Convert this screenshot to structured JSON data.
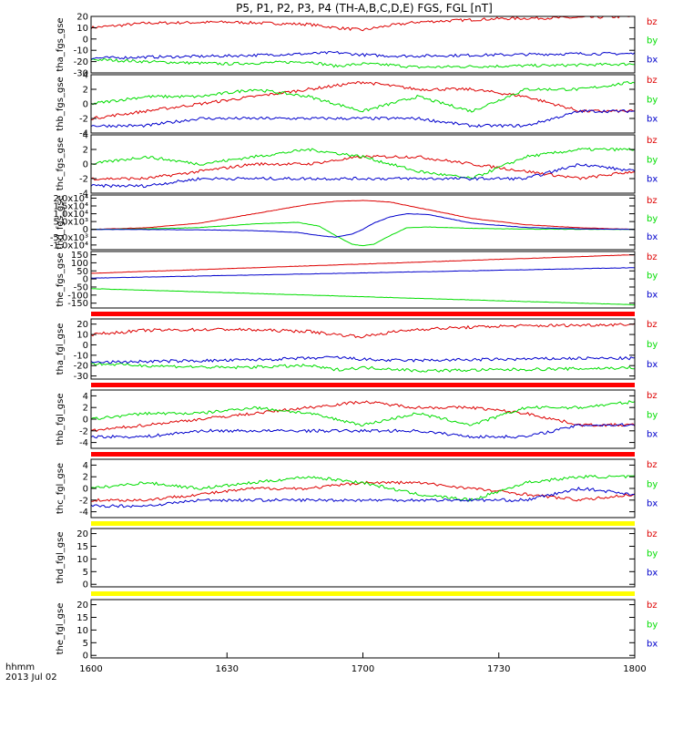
{
  "title": "P5, P1, P2, P3, P4 (TH-A,B,C,D,E) FGS, FGL [nT]",
  "xaxis": {
    "ticks": [
      "1600",
      "1630",
      "1700",
      "1730",
      "1800"
    ],
    "unit_label": "hhmm",
    "date_label": "2013 Jul 02"
  },
  "colors": {
    "bx": "#0000cc",
    "by": "#00dd00",
    "bz": "#dd0000",
    "red_bar": "#ff0000",
    "yellow_bar": "#ffff00",
    "frame": "#000000"
  },
  "chart_data": [
    {
      "type": "line",
      "name": "tha_fgs_gse",
      "ylabel": "tha_fgs_gse",
      "ylim": [
        -30,
        20
      ],
      "yticks": [
        "20",
        "10",
        "0",
        "-10",
        "-20",
        "-30"
      ],
      "ytick_values": [
        20,
        10,
        0,
        -10,
        -20,
        -30
      ],
      "legend": [
        "bz",
        "by",
        "bx"
      ],
      "series": [
        {
          "name": "bz",
          "x": [
            0,
            10,
            25,
            40,
            45,
            50,
            55,
            60,
            75,
            90,
            100
          ],
          "y": [
            10,
            14,
            15,
            13,
            10,
            8,
            12,
            15,
            18,
            19,
            20
          ]
        },
        {
          "name": "by",
          "x": [
            0,
            10,
            25,
            40,
            45,
            50,
            55,
            60,
            75,
            90,
            100
          ],
          "y": [
            -18,
            -20,
            -22,
            -20,
            -24,
            -22,
            -23,
            -25,
            -24,
            -23,
            -22
          ]
        },
        {
          "name": "bx",
          "x": [
            0,
            10,
            25,
            40,
            45,
            50,
            55,
            60,
            75,
            90,
            100
          ],
          "y": [
            -17,
            -16,
            -15,
            -13,
            -12,
            -14,
            -15,
            -15,
            -14,
            -13,
            -13
          ]
        }
      ]
    },
    {
      "type": "line",
      "name": "thb_fgs_gse",
      "ylabel": "thb_fgs_gse",
      "ylim": [
        -4,
        4
      ],
      "yticks": [
        "4",
        "2",
        "0",
        "-2",
        "-4"
      ],
      "ytick_values": [
        4,
        2,
        0,
        -2,
        -4
      ],
      "legend": [
        "bz",
        "by",
        "bx"
      ],
      "series": [
        {
          "name": "bz",
          "x": [
            0,
            10,
            20,
            30,
            40,
            50,
            60,
            70,
            80,
            90,
            100
          ],
          "y": [
            -2,
            -1,
            0,
            1,
            2,
            3,
            2,
            2,
            1,
            -1,
            -1
          ]
        },
        {
          "name": "by",
          "x": [
            0,
            10,
            20,
            30,
            40,
            50,
            60,
            70,
            80,
            90,
            100
          ],
          "y": [
            0,
            1,
            1,
            2,
            1,
            -1,
            1,
            -1,
            2,
            2,
            3
          ]
        },
        {
          "name": "bx",
          "x": [
            0,
            10,
            20,
            30,
            40,
            50,
            60,
            70,
            80,
            90,
            100
          ],
          "y": [
            -3,
            -3,
            -2,
            -2,
            -2,
            -2,
            -2,
            -3,
            -3,
            -1,
            -1
          ]
        }
      ]
    },
    {
      "type": "line",
      "name": "thc_fgs_gse",
      "ylabel": "thc_fgs_gse",
      "ylim": [
        -4,
        4
      ],
      "yticks": [
        "4",
        "2",
        "0",
        "-2",
        "-4"
      ],
      "ytick_values": [
        4,
        2,
        0,
        -2,
        -4
      ],
      "legend": [
        "bz",
        "by",
        "bx"
      ],
      "series": [
        {
          "name": "bz",
          "x": [
            0,
            10,
            20,
            30,
            40,
            50,
            60,
            70,
            80,
            90,
            100
          ],
          "y": [
            -2,
            -2,
            -1,
            0,
            0,
            1,
            1,
            0,
            -1,
            -2,
            -1
          ]
        },
        {
          "name": "by",
          "x": [
            0,
            10,
            20,
            30,
            40,
            50,
            60,
            70,
            80,
            90,
            100
          ],
          "y": [
            0,
            1,
            0,
            1,
            2,
            1,
            -1,
            -2,
            1,
            2,
            2
          ]
        },
        {
          "name": "bx",
          "x": [
            0,
            10,
            20,
            30,
            40,
            50,
            60,
            70,
            80,
            90,
            100
          ],
          "y": [
            -3,
            -3,
            -2,
            -2,
            -2,
            -2,
            -2,
            -2,
            -2,
            0,
            -1
          ]
        }
      ]
    },
    {
      "type": "line",
      "name": "thd_fgs_gse",
      "ylabel": "thd_fgs_gse",
      "ylim": [
        -13000,
        22000
      ],
      "yticks": [
        "2.0x10⁴",
        "1.5x10⁴",
        "1.0x10⁴",
        "5.0x10³",
        "0",
        "-5.0x10³",
        "-1.0x10⁴"
      ],
      "ytick_values": [
        20000,
        15000,
        10000,
        5000,
        0,
        -5000,
        -10000
      ],
      "legend": [
        "bz",
        "by",
        "bx"
      ],
      "series": [
        {
          "name": "bz",
          "x": [
            0,
            10,
            20,
            30,
            40,
            45,
            50,
            55,
            60,
            70,
            80,
            90,
            100
          ],
          "y": [
            0,
            1000,
            4000,
            10000,
            16000,
            18000,
            18500,
            17500,
            14000,
            7000,
            3000,
            1000,
            0
          ]
        },
        {
          "name": "by",
          "x": [
            0,
            10,
            20,
            30,
            38,
            42,
            45,
            48,
            50,
            52,
            55,
            58,
            62,
            70,
            80,
            90,
            100
          ],
          "y": [
            0,
            300,
            1200,
            3500,
            4500,
            2000,
            -4000,
            -9500,
            -10500,
            -9500,
            -4000,
            1000,
            1500,
            700,
            200,
            50,
            0
          ]
        },
        {
          "name": "bx",
          "x": [
            0,
            10,
            20,
            30,
            38,
            42,
            45,
            48,
            50,
            52,
            55,
            58,
            62,
            70,
            80,
            90,
            100
          ],
          "y": [
            0,
            -100,
            -300,
            -800,
            -2000,
            -4000,
            -5000,
            -3000,
            0,
            4000,
            8000,
            10000,
            9500,
            4000,
            1200,
            300,
            0
          ]
        }
      ]
    },
    {
      "type": "line",
      "name": "the_fgs_gse",
      "ylabel": "the_fgs_gse",
      "ylim": [
        -180,
        170
      ],
      "yticks": [
        "150",
        "100",
        "50",
        "0",
        "-50",
        "-100",
        "-150"
      ],
      "ytick_values": [
        150,
        100,
        50,
        0,
        -50,
        -100,
        -150
      ],
      "legend": [
        "bz",
        "by",
        "bx"
      ],
      "series": [
        {
          "name": "bz",
          "x": [
            0,
            100
          ],
          "y": [
            35,
            150
          ]
        },
        {
          "name": "by",
          "x": [
            0,
            100
          ],
          "y": [
            -60,
            -160
          ]
        },
        {
          "name": "bx",
          "x": [
            0,
            100
          ],
          "y": [
            5,
            70
          ]
        }
      ]
    },
    {
      "type": "line",
      "name": "tha_fgl_gse",
      "ylabel": "tha_fgl_gse",
      "ylim": [
        -33,
        25
      ],
      "yticks": [
        "20",
        "10",
        "0",
        "-10",
        "-20",
        "-30"
      ],
      "ytick_values": [
        20,
        10,
        0,
        -10,
        -20,
        -30
      ],
      "legend": [
        "bz",
        "by",
        "bx"
      ],
      "series": [
        {
          "name": "bz",
          "x": [
            0,
            10,
            25,
            40,
            45,
            50,
            55,
            60,
            75,
            90,
            100
          ],
          "y": [
            10,
            14,
            15,
            13,
            10,
            8,
            12,
            15,
            18,
            19,
            20
          ]
        },
        {
          "name": "by",
          "x": [
            0,
            10,
            25,
            40,
            45,
            50,
            55,
            60,
            75,
            90,
            100
          ],
          "y": [
            -18,
            -20,
            -22,
            -20,
            -24,
            -22,
            -23,
            -25,
            -24,
            -23,
            -22
          ]
        },
        {
          "name": "bx",
          "x": [
            0,
            10,
            25,
            40,
            45,
            50,
            55,
            60,
            75,
            90,
            100
          ],
          "y": [
            -17,
            -16,
            -15,
            -13,
            -12,
            -14,
            -15,
            -15,
            -14,
            -13,
            -13
          ]
        }
      ]
    },
    {
      "type": "line",
      "name": "thb_fgl_gse",
      "ylabel": "thb_fgl_gse",
      "ylim": [
        -5,
        5
      ],
      "yticks": [
        "4",
        "2",
        "0",
        "-2",
        "-4"
      ],
      "ytick_values": [
        4,
        2,
        0,
        -2,
        -4
      ],
      "legend": [
        "bz",
        "by",
        "bx"
      ],
      "series": [
        {
          "name": "bz",
          "x": [
            0,
            10,
            20,
            30,
            40,
            50,
            60,
            70,
            80,
            90,
            100
          ],
          "y": [
            -2,
            -1,
            0,
            1,
            2,
            3,
            2,
            2,
            1,
            -1,
            -1
          ]
        },
        {
          "name": "by",
          "x": [
            0,
            10,
            20,
            30,
            40,
            50,
            60,
            70,
            80,
            90,
            100
          ],
          "y": [
            0,
            1,
            1,
            2,
            1,
            -1,
            1,
            -1,
            2,
            2,
            3
          ]
        },
        {
          "name": "bx",
          "x": [
            0,
            10,
            20,
            30,
            40,
            50,
            60,
            70,
            80,
            90,
            100
          ],
          "y": [
            -3,
            -3,
            -2,
            -2,
            -2,
            -2,
            -2,
            -3,
            -3,
            -1,
            -1
          ]
        }
      ]
    },
    {
      "type": "line",
      "name": "thc_fgl_gse",
      "ylabel": "thc_fgl_gse",
      "ylim": [
        -5,
        5
      ],
      "yticks": [
        "4",
        "2",
        "0",
        "-2",
        "-4"
      ],
      "ytick_values": [
        4,
        2,
        0,
        -2,
        -4
      ],
      "legend": [
        "bz",
        "by",
        "bx"
      ],
      "series": [
        {
          "name": "bz",
          "x": [
            0,
            10,
            20,
            30,
            40,
            50,
            60,
            70,
            80,
            90,
            100
          ],
          "y": [
            -2,
            -2,
            -1,
            0,
            0,
            1,
            1,
            0,
            -1,
            -2,
            -1
          ]
        },
        {
          "name": "by",
          "x": [
            0,
            10,
            20,
            30,
            40,
            50,
            60,
            70,
            80,
            90,
            100
          ],
          "y": [
            0,
            1,
            0,
            1,
            2,
            1,
            -1,
            -2,
            1,
            2,
            2
          ]
        },
        {
          "name": "bx",
          "x": [
            0,
            10,
            20,
            30,
            40,
            50,
            60,
            70,
            80,
            90,
            100
          ],
          "y": [
            -3,
            -3,
            -2,
            -2,
            -2,
            -2,
            -2,
            -2,
            -2,
            0,
            -1
          ]
        }
      ]
    },
    {
      "type": "line",
      "name": "thd_fgl_gse",
      "ylabel": "thd_fgl_gse",
      "ylim": [
        -1,
        22
      ],
      "yticks": [
        "20",
        "15",
        "10",
        "5",
        "0"
      ],
      "ytick_values": [
        20,
        15,
        10,
        5,
        0
      ],
      "legend": [
        "bz",
        "by",
        "bx"
      ],
      "series": []
    },
    {
      "type": "line",
      "name": "the_fgl_gse",
      "ylabel": "the_fgl_gse",
      "ylim": [
        -1,
        22
      ],
      "yticks": [
        "20",
        "15",
        "10",
        "5",
        "0"
      ],
      "ytick_values": [
        20,
        15,
        10,
        5,
        0
      ],
      "legend": [
        "bz",
        "by",
        "bx"
      ],
      "series": []
    }
  ]
}
